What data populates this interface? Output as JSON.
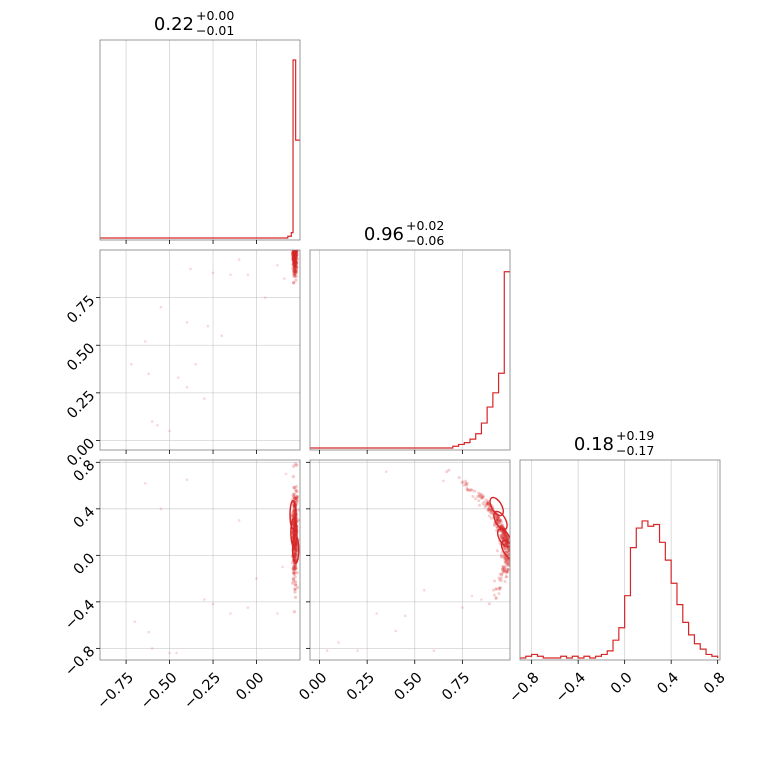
{
  "chart_data": {
    "type": "corner",
    "color": "#d62728",
    "grid": true,
    "parameters": [
      "",
      "",
      ""
    ],
    "titles": [
      {
        "median": "0.22",
        "plus": "+0.00",
        "minus": "−0.01"
      },
      {
        "median": "0.96",
        "plus": "+0.02",
        "minus": "−0.06"
      },
      {
        "median": "0.18",
        "plus": "+0.19",
        "minus": "−0.17"
      }
    ],
    "ranges": [
      [
        -0.9,
        0.25
      ],
      [
        -0.05,
        1.0
      ],
      [
        -0.9,
        0.82
      ]
    ],
    "ticks": [
      {
        "values": [
          -0.75,
          -0.5,
          -0.25,
          0.0
        ],
        "labels": [
          "−0.75",
          "−0.50",
          "−0.25",
          "0.00"
        ]
      },
      {
        "values": [
          0.0,
          0.25,
          0.5,
          0.75
        ],
        "labels": [
          "0.00",
          "0.25",
          "0.50",
          "0.75"
        ]
      },
      {
        "values": [
          -0.8,
          -0.4,
          0.0,
          0.4,
          0.8
        ],
        "labels": [
          "−0.8",
          "−0.4",
          "0.0",
          "0.4",
          "0.8"
        ]
      }
    ],
    "histograms": [
      {
        "edges": [
          -0.9,
          0.18,
          0.2,
          0.21,
          0.225,
          0.24,
          0.25
        ],
        "counts": [
          0,
          0.01,
          0.03,
          1.0,
          0.55,
          0.55
        ]
      },
      {
        "edges": [
          -0.05,
          0.7,
          0.73,
          0.76,
          0.79,
          0.82,
          0.85,
          0.88,
          0.91,
          0.94,
          0.97,
          1.0
        ],
        "counts": [
          0,
          0.01,
          0.02,
          0.03,
          0.05,
          0.08,
          0.14,
          0.23,
          0.31,
          0.42,
          0.99
        ]
      },
      {
        "edges": [
          -0.9,
          -0.85,
          -0.8,
          -0.75,
          -0.7,
          -0.65,
          -0.6,
          -0.55,
          -0.5,
          -0.45,
          -0.4,
          -0.35,
          -0.3,
          -0.25,
          -0.2,
          -0.15,
          -0.1,
          -0.05,
          0.0,
          0.05,
          0.1,
          0.15,
          0.2,
          0.25,
          0.3,
          0.35,
          0.4,
          0.45,
          0.5,
          0.55,
          0.6,
          0.65,
          0.7,
          0.75,
          0.8
        ],
        "counts": [
          0.0,
          0.01,
          0.02,
          0.01,
          0.0,
          0.0,
          0.0,
          0.01,
          0.0,
          0.01,
          0.0,
          0.01,
          0.0,
          0.01,
          0.02,
          0.04,
          0.1,
          0.17,
          0.35,
          0.62,
          0.73,
          0.77,
          0.74,
          0.75,
          0.65,
          0.55,
          0.42,
          0.3,
          0.2,
          0.13,
          0.08,
          0.05,
          0.02,
          0.01,
          0.0
        ]
      }
    ],
    "panels": [
      {
        "x": 0,
        "y": 1,
        "samples": [
          [
            -0.72,
            0.4
          ],
          [
            -0.64,
            0.52
          ],
          [
            -0.62,
            0.35
          ],
          [
            -0.55,
            0.7
          ],
          [
            -0.6,
            0.1
          ],
          [
            -0.57,
            0.08
          ],
          [
            -0.5,
            0.05
          ],
          [
            -0.45,
            0.33
          ],
          [
            -0.4,
            0.62
          ],
          [
            -0.38,
            0.9
          ],
          [
            -0.4,
            0.28
          ],
          [
            -0.35,
            0.4
          ],
          [
            -0.3,
            0.22
          ],
          [
            -0.28,
            0.6
          ],
          [
            -0.25,
            0.88
          ],
          [
            -0.2,
            0.55
          ],
          [
            -0.15,
            0.87
          ],
          [
            -0.1,
            0.95
          ],
          [
            -0.05,
            0.87
          ],
          [
            0.05,
            0.75
          ],
          [
            0.12,
            0.92
          ],
          [
            0.16,
            0.85
          ]
        ]
      },
      {
        "x": 0,
        "y": 2,
        "samples": [
          [
            -0.7,
            -0.57
          ],
          [
            -0.62,
            -0.66
          ],
          [
            -0.64,
            0.62
          ],
          [
            -0.6,
            -0.8
          ],
          [
            -0.55,
            0.4
          ],
          [
            -0.5,
            -0.84
          ],
          [
            -0.46,
            -0.84
          ],
          [
            -0.4,
            0.65
          ],
          [
            -0.3,
            -0.38
          ],
          [
            -0.25,
            -0.42
          ],
          [
            -0.15,
            -0.5
          ],
          [
            -0.1,
            0.3
          ],
          [
            -0.05,
            -0.45
          ],
          [
            0.0,
            -0.2
          ],
          [
            0.12,
            -0.5
          ],
          [
            0.15,
            -0.1
          ],
          [
            0.17,
            0.7
          ]
        ]
      },
      {
        "x": 1,
        "y": 2,
        "samples": [
          [
            0.04,
            -0.82
          ],
          [
            0.1,
            -0.75
          ],
          [
            0.2,
            -0.82
          ],
          [
            0.3,
            -0.5
          ],
          [
            0.35,
            0.72
          ],
          [
            0.4,
            -0.65
          ],
          [
            0.45,
            -0.52
          ],
          [
            0.55,
            -0.3
          ],
          [
            0.6,
            -0.82
          ],
          [
            0.65,
            0.64
          ],
          [
            0.75,
            -0.45
          ],
          [
            0.8,
            -0.35
          ],
          [
            0.85,
            -0.38
          ]
        ]
      }
    ]
  }
}
